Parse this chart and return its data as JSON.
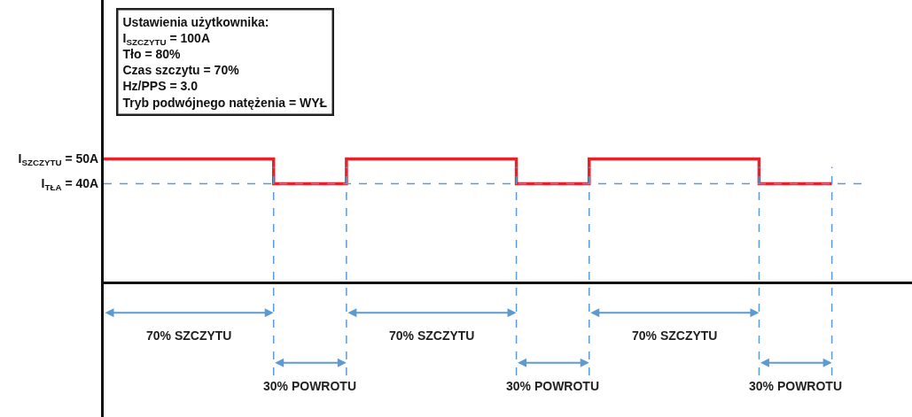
{
  "chart_data": {
    "type": "step",
    "categories": [
      null,
      null,
      null,
      null,
      null,
      null,
      null,
      null,
      null,
      null,
      null,
      null,
      null,
      null,
      null,
      null,
      null,
      null,
      null,
      null,
      null,
      null,
      null,
      null,
      null,
      null,
      null,
      null,
      null,
      null,
      null
    ],
    "series": [
      {
        "color": "#e8202a",
        "values": [
          50,
          50,
          50,
          50,
          50,
          50,
          50,
          40,
          40,
          40,
          50,
          50,
          50,
          50,
          50,
          50,
          50,
          40,
          40,
          40,
          50,
          50,
          50,
          50,
          50,
          50,
          50,
          40,
          40,
          40,
          40
        ]
      }
    ],
    "ylim": [
      -54,
      114
    ],
    "yticks": [
      {
        "value": 40,
        "label": "I$_{TŁA}$ = 40A"
      },
      {
        "value": 50,
        "label": "I$_{SZCZYTU}$ = 50A"
      }
    ],
    "tick_labels": "y",
    "ref_lines": [
      {
        "axis": "y",
        "value": 40,
        "color": "#5b9bd5",
        "line_style": "dashed"
      }
    ],
    "annotations": [
      "Ustawienia użytkownika:\nI$_{SZCZYTU}$ = 100A\nTło = 80%\nCzas szczytu = 70%\nHz/PPS = 3.0\nTryb podwójnego natężenia = WYŁ",
      "70% SZCZYTU",
      "30% POWROTU",
      "70% SZCZYTU",
      "30% POWROTU",
      "70% SZCZYTU",
      "30% POWROTU"
    ]
  }
}
